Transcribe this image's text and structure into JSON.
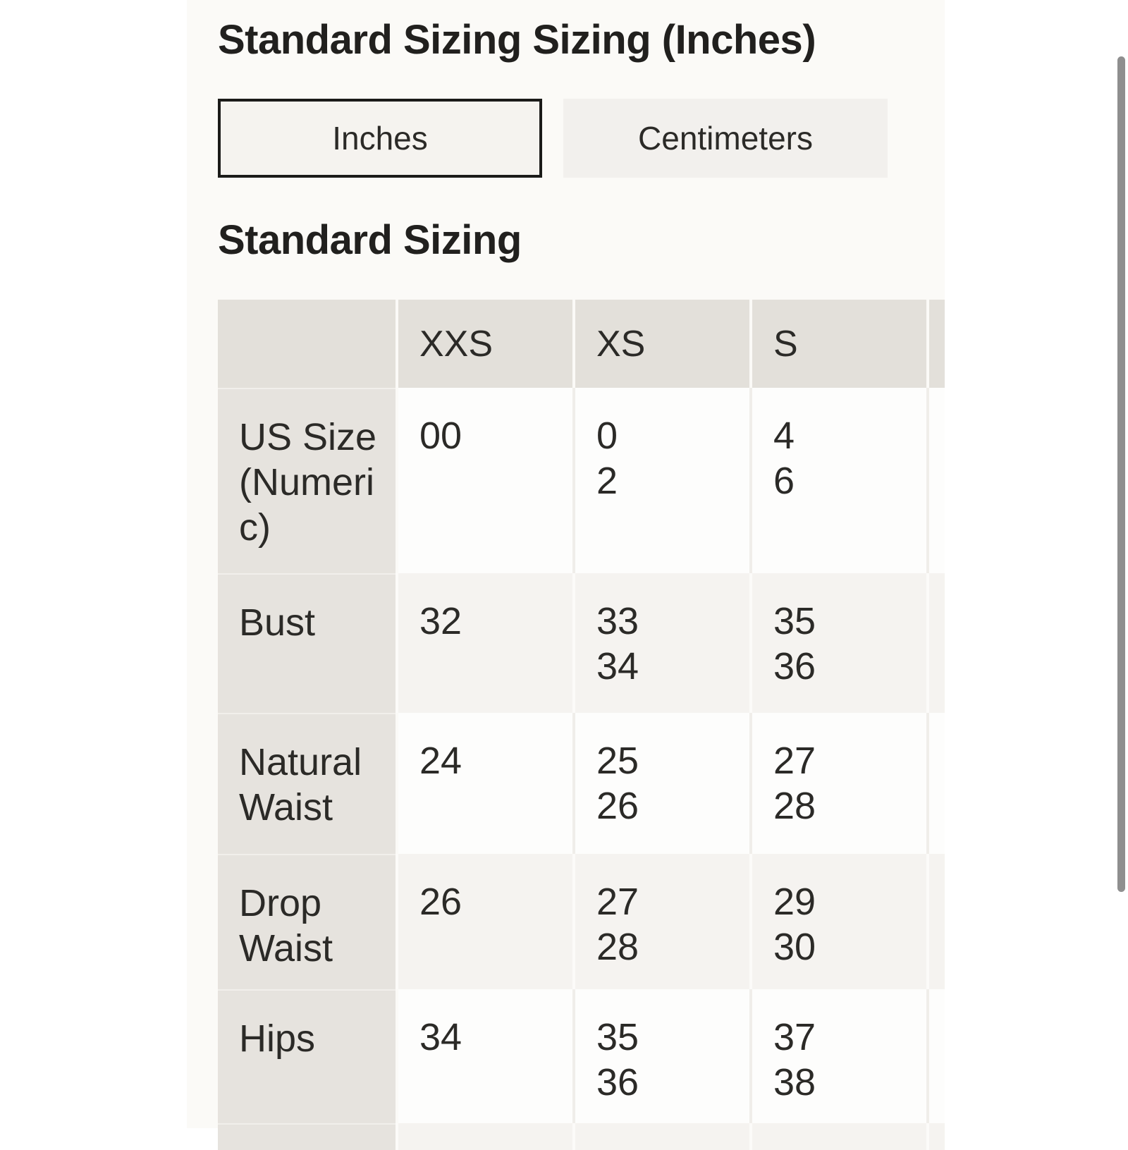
{
  "title": "Standard Sizing Sizing (Inches)",
  "unit_toggle": {
    "inches_label": "Inches",
    "centimeters_label": "Centimeters",
    "selected": "Inches"
  },
  "section_heading": "Standard Sizing",
  "table": {
    "column_headers": [
      "",
      "XXS",
      "XS",
      "S"
    ],
    "rows": [
      {
        "label": "US Size (Numeric)",
        "label_lines": [
          "US Size",
          "(Numeri",
          "c)"
        ],
        "values": [
          [
            "00"
          ],
          [
            "0",
            "2"
          ],
          [
            "4",
            "6"
          ]
        ]
      },
      {
        "label": "Bust",
        "label_lines": [
          "Bust"
        ],
        "values": [
          [
            "32"
          ],
          [
            "33",
            "34"
          ],
          [
            "35",
            "36"
          ]
        ]
      },
      {
        "label": "Natural Waist",
        "label_lines": [
          "Natural",
          "Waist"
        ],
        "values": [
          [
            "24"
          ],
          [
            "25",
            "26"
          ],
          [
            "27",
            "28"
          ]
        ]
      },
      {
        "label": "Drop Waist",
        "label_lines": [
          "Drop",
          "Waist"
        ],
        "values": [
          [
            "26"
          ],
          [
            "27",
            "28"
          ],
          [
            "29",
            "30"
          ]
        ]
      },
      {
        "label": "Hips",
        "label_lines": [
          "Hips"
        ],
        "values": [
          [
            "34"
          ],
          [
            "35",
            "36"
          ],
          [
            "37",
            "38"
          ]
        ]
      }
    ]
  },
  "colors": {
    "panel_bg": "#fbfaf7",
    "header_gray": "#e3e0da",
    "label_gray": "#e6e3de",
    "shaded_row": "#f5f3f0",
    "text": "#2b2a27",
    "selected_border": "#1b1b19",
    "scrollbar": "#8f8f8f"
  }
}
